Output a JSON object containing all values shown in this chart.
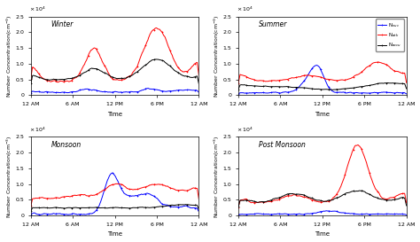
{
  "panels": [
    "Winter",
    "Summer",
    "Monsoon",
    "Post Monsoon"
  ],
  "legend_labels_display": [
    "N$_{nuc}$",
    "N$_{atk}$",
    "N$_{accu}$"
  ],
  "colors": [
    "blue",
    "red",
    "black"
  ],
  "xlabel": "Time",
  "ylabel": "Number Concentration(cm$^{-3}$)",
  "ylim": [
    0,
    2.5
  ],
  "yticks": [
    0,
    0.5,
    1.0,
    1.5,
    2.0,
    2.5
  ],
  "xtick_labels": [
    "12 AM",
    "6 AM",
    "12 PM",
    "6 PM",
    "12 AM"
  ],
  "xtick_pos": [
    0,
    6,
    12,
    18,
    24
  ]
}
